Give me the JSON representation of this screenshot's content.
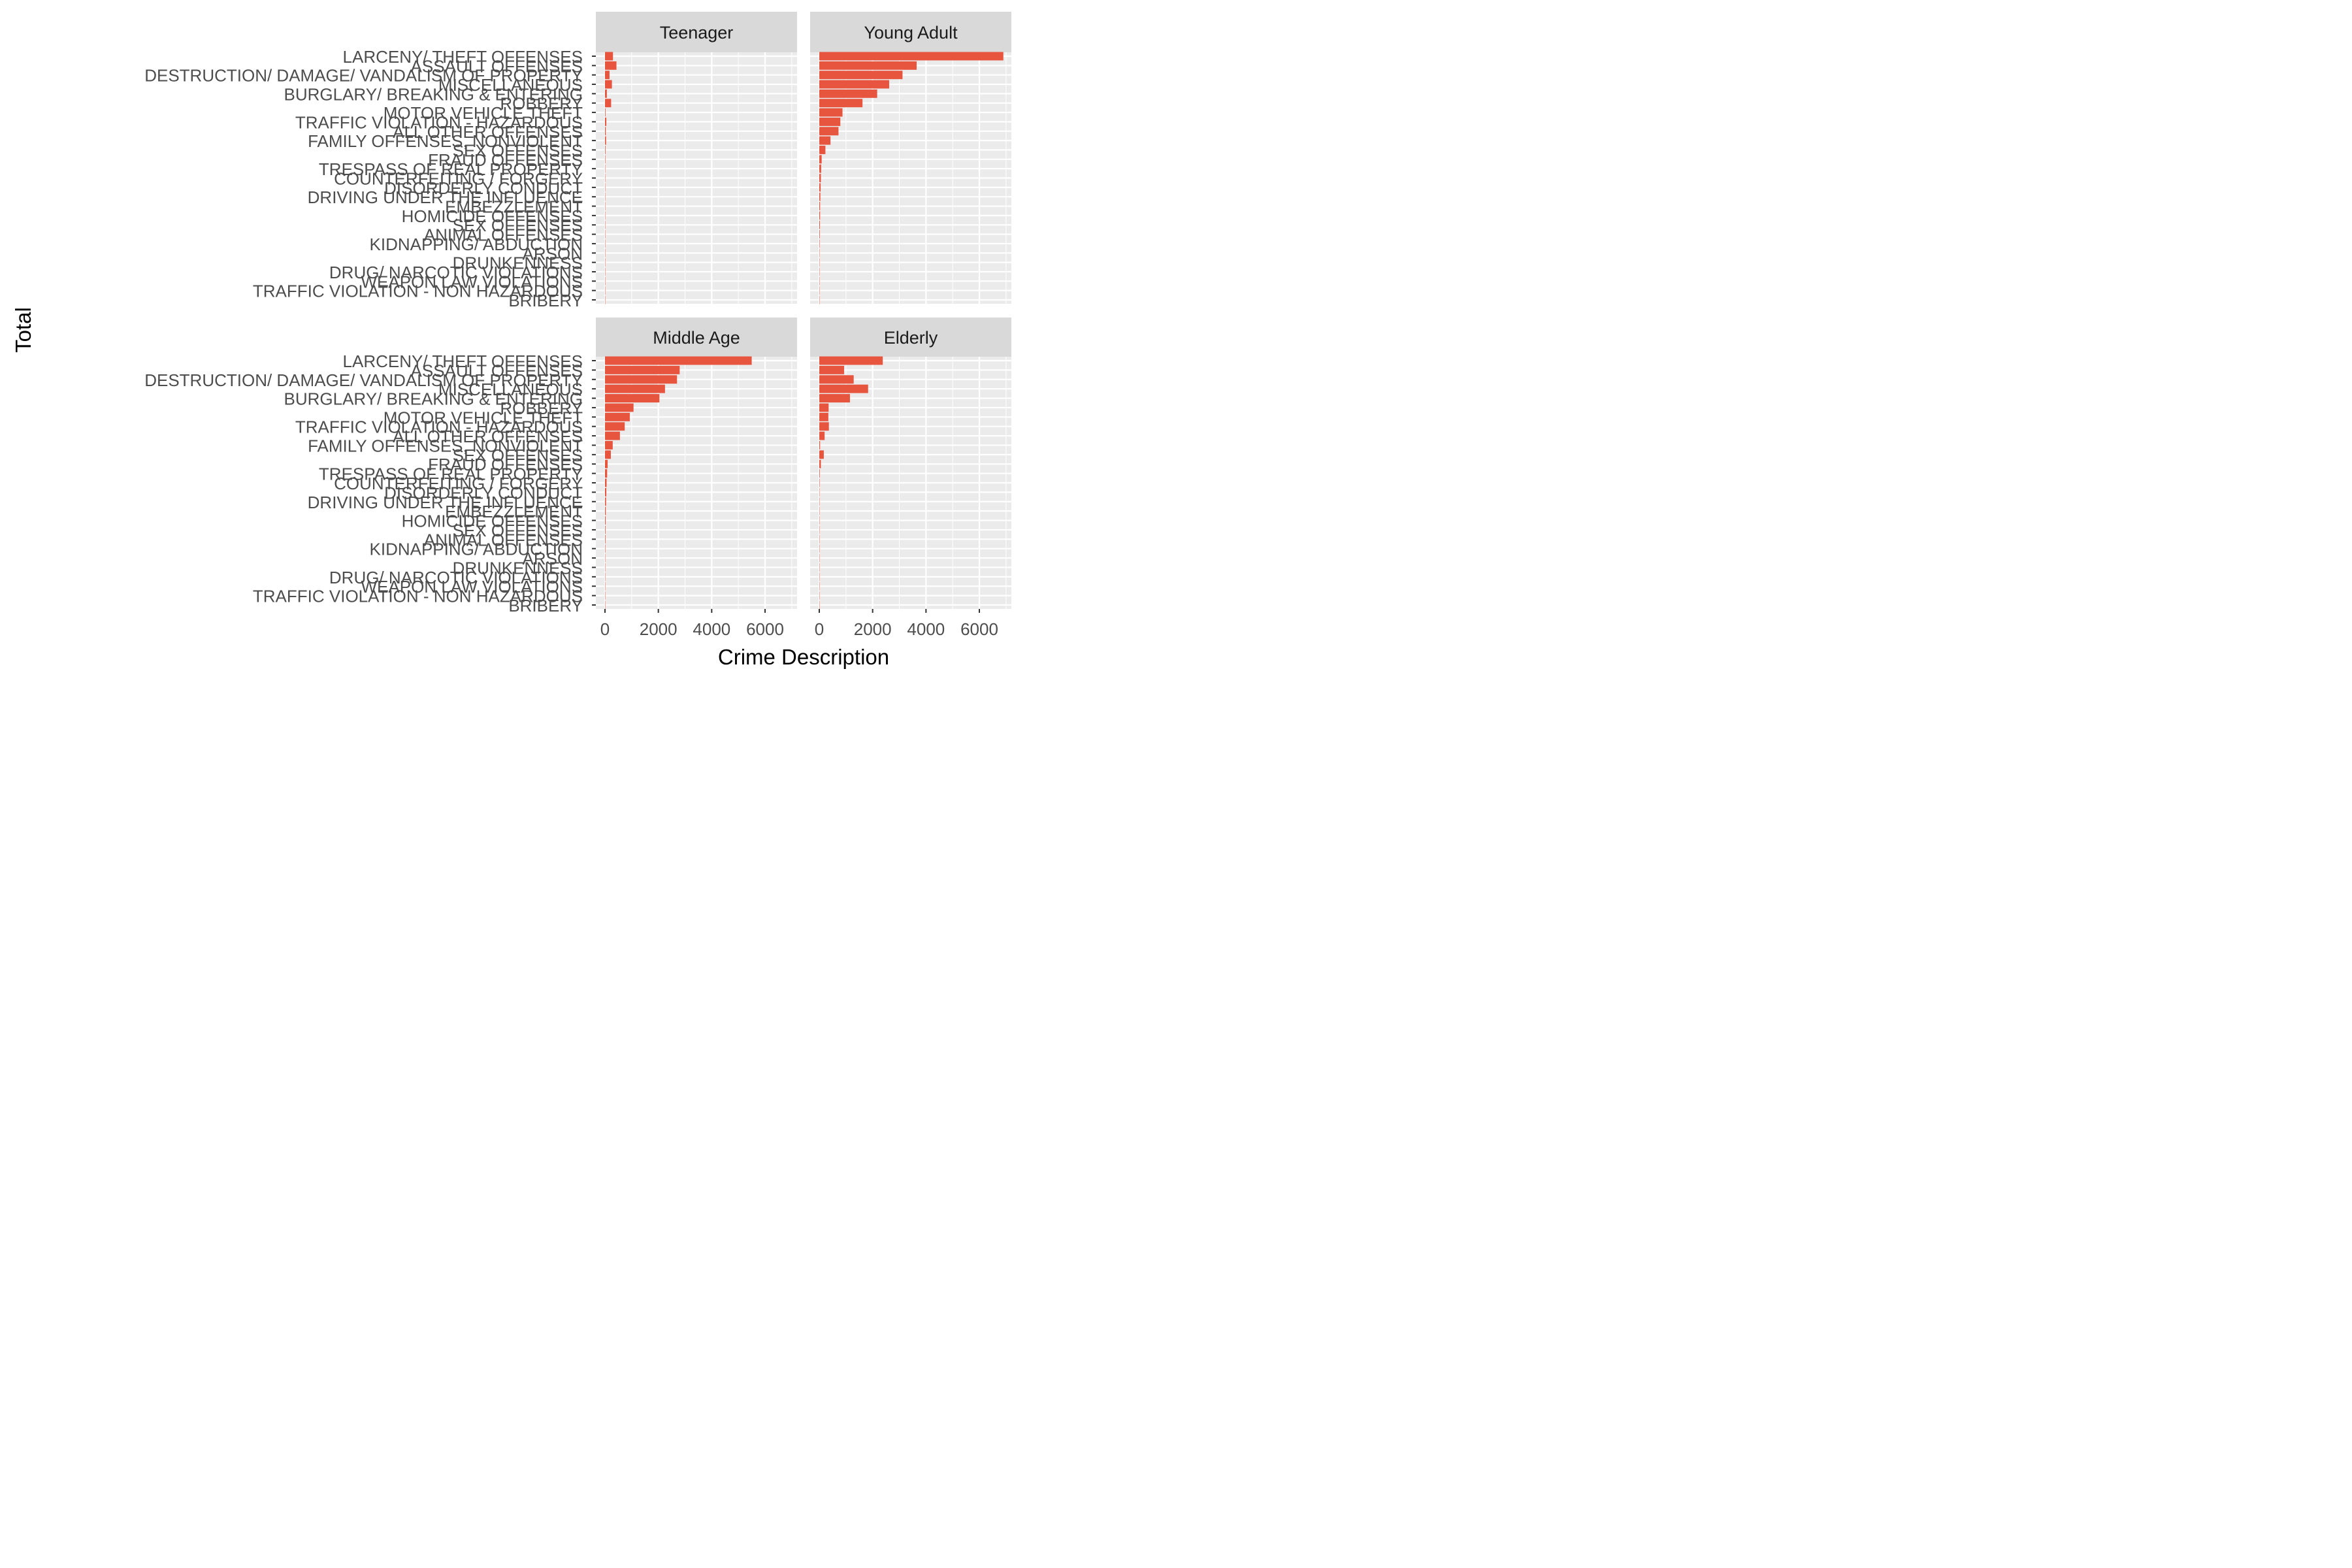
{
  "chart_data": {
    "type": "bar",
    "orientation": "horizontal",
    "facet_layout": "2x2",
    "xlabel": "Crime Description",
    "ylabel": "Total",
    "xlim": [
      0,
      7200
    ],
    "x_ticks": [
      0,
      2000,
      4000,
      6000
    ],
    "x_tick_labels": [
      "0",
      "2000",
      "4000",
      "6000"
    ],
    "grid": true,
    "bar_color": "#E8553F",
    "panel_background": "#EBEBEB",
    "strip_background": "#D9D9D9",
    "categories": [
      "LARCENY/ THEFT OFFENSES",
      "ASSAULT OFFENSES",
      "DESTRUCTION/ DAMAGE/ VANDALISM OF PROPERTY",
      "MISCELLANEOUS",
      "BURGLARY/ BREAKING & ENTERING",
      "ROBBERY",
      "MOTOR VEHICLE THEFT",
      "TRAFFIC VIOLATION - HAZARDOUS",
      "ALL OTHER OFFENSES",
      "FAMILY OFFENSES, NONVIOLENT",
      "SEX OFFENSES",
      "FRAUD OFFENSES",
      "TRESPASS OF REAL PROPERTY",
      "COUNTERFEITING / FORGERY",
      "DISORDERLY CONDUCT",
      "DRIVING UNDER THE INFLUENCE",
      "EMBEZZLEMENT",
      "HOMICIDE OFFENSES",
      "SEX OFFENSES",
      "ANIMAL OFFENSES",
      "KIDNAPPING/ ABDUCTION",
      "ARSON",
      "DRUNKENNESS",
      "DRUG/ NARCOTIC VIOLATIONS",
      "WEAPON LAW VIOLATIONS",
      "TRAFFIC VIOLATION - NON HAZARDOUS",
      "BRIBERY"
    ],
    "panels": [
      {
        "name": "Teenager",
        "values": [
          300,
          430,
          170,
          260,
          70,
          230,
          20,
          50,
          30,
          40,
          20,
          15,
          10,
          10,
          8,
          8,
          5,
          5,
          5,
          5,
          5,
          3,
          3,
          3,
          3,
          2,
          2
        ]
      },
      {
        "name": "Young Adult",
        "values": [
          6900,
          3650,
          3120,
          2620,
          2170,
          1620,
          870,
          790,
          720,
          420,
          230,
          90,
          70,
          60,
          50,
          40,
          30,
          30,
          25,
          20,
          15,
          10,
          10,
          8,
          8,
          5,
          5
        ]
      },
      {
        "name": "Middle Age",
        "values": [
          5500,
          2800,
          2700,
          2250,
          2040,
          1070,
          930,
          740,
          560,
          290,
          220,
          100,
          80,
          60,
          50,
          40,
          30,
          25,
          20,
          20,
          15,
          10,
          10,
          8,
          8,
          5,
          5
        ]
      },
      {
        "name": "Elderly",
        "values": [
          2380,
          930,
          1290,
          1830,
          1150,
          350,
          340,
          360,
          200,
          30,
          170,
          60,
          20,
          15,
          10,
          8,
          5,
          5,
          5,
          5,
          3,
          3,
          3,
          3,
          2,
          2,
          2
        ]
      }
    ]
  }
}
